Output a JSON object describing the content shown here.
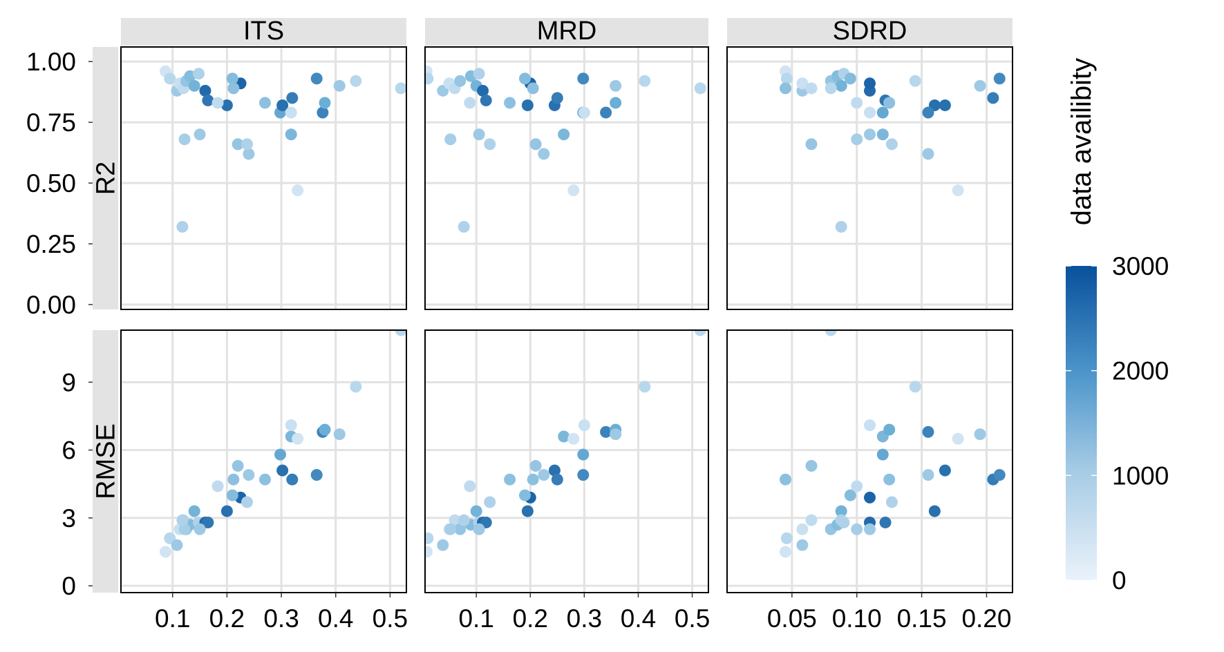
{
  "chart_data": {
    "type": "scatter",
    "facet_columns": [
      "ITS",
      "MRD",
      "SDRD"
    ],
    "facet_rows": [
      "R2",
      "RMSE"
    ],
    "y_axis": {
      "R2": {
        "ylim": [
          -0.02,
          1.06
        ],
        "ticks": [
          0,
          0.25,
          0.5,
          0.75,
          1.0
        ],
        "tick_labels": [
          "0.00",
          "0.25",
          "0.50",
          "0.75",
          "1.00"
        ]
      },
      "RMSE": {
        "ylim": [
          -0.3,
          11.3
        ],
        "ticks": [
          0,
          3,
          6,
          9
        ],
        "tick_labels": [
          "0",
          "3",
          "6",
          "9"
        ]
      }
    },
    "x_axis": {
      "ITS": {
        "xlim": [
          0.005,
          0.53
        ],
        "ticks": [
          0.1,
          0.2,
          0.3,
          0.4,
          0.5
        ],
        "tick_labels": [
          "0.1",
          "0.2",
          "0.3",
          "0.4",
          "0.5"
        ]
      },
      "MRD": {
        "xlim": [
          0.005,
          0.53
        ],
        "ticks": [
          0.1,
          0.2,
          0.3,
          0.4,
          0.5
        ],
        "tick_labels": [
          "0.1",
          "0.2",
          "0.3",
          "0.4",
          "0.5"
        ]
      },
      "SDRD": {
        "xlim": [
          0.0,
          0.22
        ],
        "ticks": [
          0.05,
          0.1,
          0.15,
          0.2
        ],
        "tick_labels": [
          "0.05",
          "0.10",
          "0.15",
          "0.20"
        ]
      }
    },
    "grid": true,
    "legend": {
      "title": "data availibity",
      "position": "right",
      "type": "colorbar",
      "range": [
        0,
        3000
      ],
      "ticks": [
        0,
        1000,
        2000,
        3000
      ],
      "tick_labels": [
        "0",
        "1000",
        "2000",
        "3000"
      ],
      "colors": {
        "low": "#eaf2fb",
        "mid": "#6baed6",
        "high": "#08519c"
      }
    },
    "points": [
      {
        "ITS": 0.087,
        "MRD": 0.008,
        "SDRD": 0.045,
        "R2": 0.96,
        "RMSE": 1.5,
        "avail": 300
      },
      {
        "ITS": 0.095,
        "MRD": 0.01,
        "SDRD": 0.046,
        "R2": 0.93,
        "RMSE": 2.1,
        "avail": 600
      },
      {
        "ITS": 0.108,
        "MRD": 0.038,
        "SDRD": 0.058,
        "R2": 0.88,
        "RMSE": 1.8,
        "avail": 900
      },
      {
        "ITS": 0.113,
        "MRD": 0.05,
        "SDRD": 0.058,
        "R2": 0.91,
        "RMSE": 2.5,
        "avail": 400
      },
      {
        "ITS": 0.12,
        "MRD": 0.06,
        "SDRD": 0.065,
        "R2": 0.89,
        "RMSE": 2.9,
        "avail": 500
      },
      {
        "ITS": 0.125,
        "MRD": 0.07,
        "SDRD": 0.08,
        "R2": 0.92,
        "RMSE": 2.5,
        "avail": 1000
      },
      {
        "ITS": 0.132,
        "MRD": 0.09,
        "SDRD": 0.085,
        "R2": 0.94,
        "RMSE": 2.7,
        "avail": 1200
      },
      {
        "ITS": 0.14,
        "MRD": 0.1,
        "SDRD": 0.088,
        "R2": 0.9,
        "RMSE": 3.3,
        "avail": 1400
      },
      {
        "ITS": 0.148,
        "MRD": 0.105,
        "SDRD": 0.09,
        "R2": 0.95,
        "RMSE": 2.8,
        "avail": 700
      },
      {
        "ITS": 0.16,
        "MRD": 0.112,
        "SDRD": 0.11,
        "R2": 0.88,
        "RMSE": 2.8,
        "avail": 2600
      },
      {
        "ITS": 0.165,
        "MRD": 0.118,
        "SDRD": 0.122,
        "R2": 0.84,
        "RMSE": 2.8,
        "avail": 2400
      },
      {
        "ITS": 0.2,
        "MRD": 0.195,
        "SDRD": 0.16,
        "R2": 0.82,
        "RMSE": 3.3,
        "avail": 2500
      },
      {
        "ITS": 0.225,
        "MRD": 0.2,
        "SDRD": 0.11,
        "R2": 0.91,
        "RMSE": 3.9,
        "avail": 2700
      },
      {
        "ITS": 0.21,
        "MRD": 0.19,
        "SDRD": 0.095,
        "R2": 0.93,
        "RMSE": 4.0,
        "avail": 1200
      },
      {
        "ITS": 0.212,
        "MRD": 0.205,
        "SDRD": 0.045,
        "R2": 0.89,
        "RMSE": 4.7,
        "avail": 1100
      },
      {
        "ITS": 0.22,
        "MRD": 0.21,
        "SDRD": 0.065,
        "R2": 0.66,
        "RMSE": 5.3,
        "avail": 1000
      },
      {
        "ITS": 0.24,
        "MRD": 0.225,
        "SDRD": 0.155,
        "R2": 0.62,
        "RMSE": 4.9,
        "avail": 900
      },
      {
        "ITS": 0.15,
        "MRD": 0.105,
        "SDRD": 0.11,
        "R2": 0.7,
        "RMSE": 2.5,
        "avail": 900
      },
      {
        "ITS": 0.122,
        "MRD": 0.052,
        "SDRD": 0.1,
        "R2": 0.68,
        "RMSE": 2.5,
        "avail": 800
      },
      {
        "ITS": 0.237,
        "MRD": 0.125,
        "SDRD": 0.127,
        "R2": 0.66,
        "RMSE": 3.7,
        "avail": 700
      },
      {
        "ITS": 0.298,
        "MRD": 0.298,
        "SDRD": 0.12,
        "R2": 0.79,
        "RMSE": 5.8,
        "avail": 1600
      },
      {
        "ITS": 0.302,
        "MRD": 0.245,
        "SDRD": 0.168,
        "R2": 0.82,
        "RMSE": 5.1,
        "avail": 2500
      },
      {
        "ITS": 0.32,
        "MRD": 0.25,
        "SDRD": 0.205,
        "R2": 0.85,
        "RMSE": 4.7,
        "avail": 2300
      },
      {
        "ITS": 0.365,
        "MRD": 0.298,
        "SDRD": 0.21,
        "R2": 0.93,
        "RMSE": 4.9,
        "avail": 2100
      },
      {
        "ITS": 0.318,
        "MRD": 0.262,
        "SDRD": 0.12,
        "R2": 0.7,
        "RMSE": 6.6,
        "avail": 1300
      },
      {
        "ITS": 0.376,
        "MRD": 0.34,
        "SDRD": 0.155,
        "R2": 0.79,
        "RMSE": 6.8,
        "avail": 2200
      },
      {
        "ITS": 0.38,
        "MRD": 0.358,
        "SDRD": 0.125,
        "R2": 0.83,
        "RMSE": 6.9,
        "avail": 1500
      },
      {
        "ITS": 0.407,
        "MRD": 0.358,
        "SDRD": 0.195,
        "R2": 0.9,
        "RMSE": 6.7,
        "avail": 900
      },
      {
        "ITS": 0.437,
        "MRD": 0.412,
        "SDRD": 0.145,
        "R2": 0.92,
        "RMSE": 8.8,
        "avail": 600
      },
      {
        "ITS": 0.52,
        "MRD": 0.515,
        "SDRD": 0.08,
        "R2": 0.89,
        "RMSE": 11.3,
        "avail": 600
      },
      {
        "ITS": 0.33,
        "MRD": 0.28,
        "SDRD": 0.178,
        "R2": 0.47,
        "RMSE": 6.5,
        "avail": 300
      },
      {
        "ITS": 0.318,
        "MRD": 0.3,
        "SDRD": 0.11,
        "R2": 0.79,
        "RMSE": 7.1,
        "avail": 400
      },
      {
        "ITS": 0.118,
        "MRD": 0.077,
        "SDRD": 0.088,
        "R2": 0.32,
        "RMSE": 2.9,
        "avail": 700
      },
      {
        "ITS": 0.27,
        "MRD": 0.162,
        "SDRD": 0.125,
        "R2": 0.83,
        "RMSE": 4.7,
        "avail": 1100
      },
      {
        "ITS": 0.183,
        "MRD": 0.088,
        "SDRD": 0.1,
        "R2": 0.83,
        "RMSE": 4.4,
        "avail": 500
      }
    ]
  }
}
